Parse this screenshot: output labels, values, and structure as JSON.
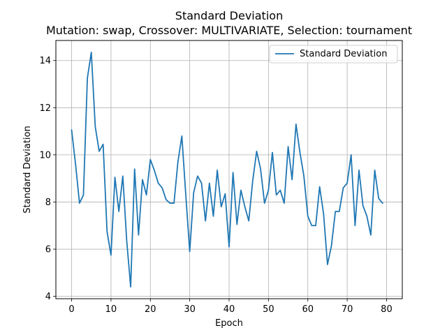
{
  "chart_data": {
    "type": "line",
    "title": "Standard Deviation",
    "subtitle": "Mutation: swap, Crossover: MULTIVARIATE, Selection: tournament",
    "xlabel": "Epoch",
    "ylabel": "Standard Deviation",
    "xlim": [
      -4,
      84
    ],
    "ylim": [
      3.9,
      14.85
    ],
    "xticks": [
      0,
      10,
      20,
      30,
      40,
      50,
      60,
      70,
      80
    ],
    "yticks": [
      4,
      6,
      8,
      10,
      12,
      14
    ],
    "grid": true,
    "legend_position": "top-right",
    "series": [
      {
        "name": "Standard Deviation",
        "color": "#1f77b4",
        "x": [
          0,
          1,
          2,
          3,
          4,
          5,
          6,
          7,
          8,
          9,
          10,
          11,
          12,
          13,
          14,
          15,
          16,
          17,
          18,
          19,
          20,
          21,
          22,
          23,
          24,
          25,
          26,
          27,
          28,
          29,
          30,
          31,
          32,
          33,
          34,
          35,
          36,
          37,
          38,
          39,
          40,
          41,
          42,
          43,
          44,
          45,
          46,
          47,
          48,
          49,
          50,
          51,
          52,
          53,
          54,
          55,
          56,
          57,
          58,
          59,
          60,
          61,
          62,
          63,
          64,
          65,
          66,
          67,
          68,
          69,
          70,
          71,
          72,
          73,
          74,
          75,
          76,
          77,
          78,
          79
        ],
        "values": [
          11.05,
          9.6,
          7.95,
          8.3,
          13.25,
          14.35,
          11.2,
          10.15,
          10.45,
          6.75,
          5.75,
          9.05,
          7.6,
          9.1,
          6.35,
          4.4,
          9.4,
          6.6,
          8.95,
          8.3,
          9.8,
          9.35,
          8.8,
          8.6,
          8.1,
          7.95,
          7.95,
          9.7,
          10.8,
          8.3,
          5.9,
          8.4,
          9.1,
          8.8,
          7.2,
          8.8,
          7.4,
          9.35,
          7.8,
          8.35,
          6.1,
          9.25,
          7.05,
          8.5,
          7.8,
          7.2,
          8.9,
          10.15,
          9.4,
          7.95,
          8.5,
          10.1,
          8.3,
          8.5,
          7.95,
          10.35,
          8.95,
          11.3,
          10.1,
          9.1,
          7.4,
          7.0,
          7.0,
          8.65,
          7.5,
          5.35,
          6.15,
          7.6,
          7.6,
          8.6,
          8.8,
          10.0,
          7.0,
          9.35,
          7.85,
          7.4,
          6.6,
          9.35,
          8.15,
          7.95
        ]
      }
    ]
  }
}
